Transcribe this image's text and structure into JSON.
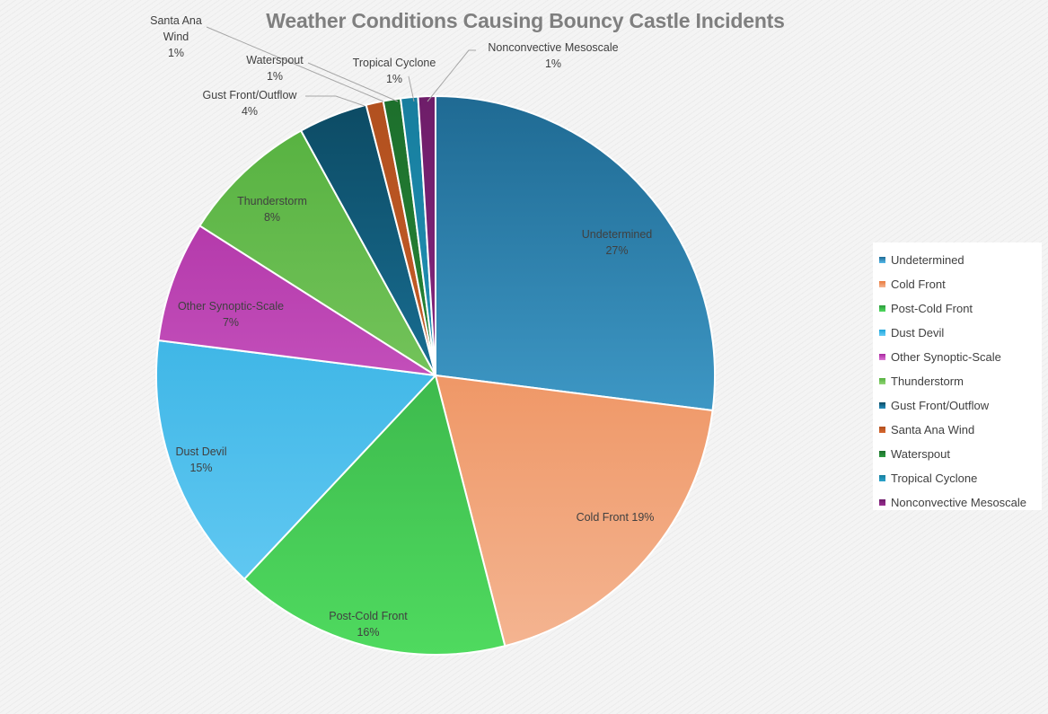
{
  "chart_data": {
    "type": "pie",
    "title": "Weather Conditions Causing Bouncy Castle Incidents",
    "legend_position": "right",
    "slices": [
      {
        "name": "Undetermined",
        "value": 27,
        "label_lines": [
          "Undetermined",
          "27%"
        ],
        "color_a": "#1f6a93",
        "color_b": "#55baeb"
      },
      {
        "name": "Cold Front",
        "value": 19,
        "label_lines": [
          "Cold Front 19%"
        ],
        "color_a": "#ea7a3c",
        "color_b": "#f4b592"
      },
      {
        "name": "Post-Cold Front",
        "value": 16,
        "label_lines": [
          "Post-Cold Front",
          "16%"
        ],
        "color_a": "#2c9a3b",
        "color_b": "#4fda5f"
      },
      {
        "name": "Dust Devil",
        "value": 15,
        "label_lines": [
          "Dust Devil",
          "15%"
        ],
        "color_a": "#1ea5db",
        "color_b": "#6acdf5"
      },
      {
        "name": "Other Synoptic-Scale",
        "value": 7,
        "label_lines": [
          "Other Synoptic-Scale",
          "7%"
        ],
        "color_a": "#a8289e",
        "color_b": "#dd75d6"
      },
      {
        "name": "Thunderstorm",
        "value": 8,
        "label_lines": [
          "Thunderstorm",
          "8%"
        ],
        "color_a": "#54b03e",
        "color_b": "#92d676"
      },
      {
        "name": "Gust Front/Outflow",
        "value": 4,
        "label_lines": [
          "Gust Front/Outflow",
          "4%"
        ],
        "color_a": "#0c4a63",
        "color_b": "#2590bf"
      },
      {
        "name": "Santa Ana Wind",
        "value": 1,
        "label_lines": [
          "Santa Ana",
          "Wind",
          "1%"
        ],
        "color_a": "#b1501f",
        "color_b": "#d8682f"
      },
      {
        "name": "Waterspout",
        "value": 1,
        "label_lines": [
          "Waterspout",
          "1%"
        ],
        "color_a": "#1d6f2c",
        "color_b": "#2e9b40"
      },
      {
        "name": "Tropical Cyclone",
        "value": 1,
        "label_lines": [
          "Tropical Cyclone",
          "1%"
        ],
        "color_a": "#177e9e",
        "color_b": "#2ba3cc"
      },
      {
        "name": "Nonconvective Mesoscale",
        "value": 1,
        "label_lines": [
          "Nonconvective Mesoscale",
          "1%"
        ],
        "color_a": "#6e1d69",
        "color_b": "#9b2f92"
      }
    ]
  }
}
